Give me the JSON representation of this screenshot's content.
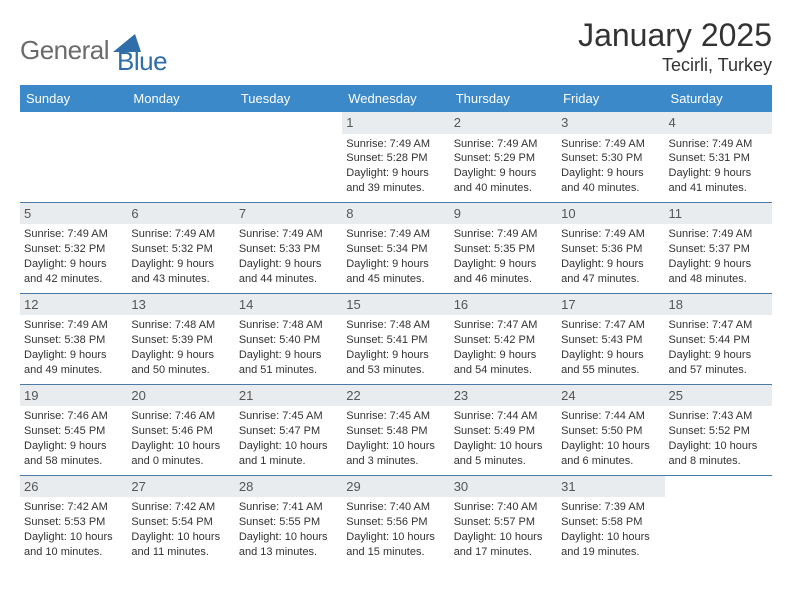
{
  "brand": {
    "part1": "General",
    "part2": "Blue"
  },
  "title": {
    "month": "January 2025",
    "location": "Tecirli, Turkey"
  },
  "style": {
    "header_bg": "#3b89c9",
    "header_fg": "#ffffff",
    "daynum_bg": "#e9ecef",
    "daynum_fg": "#555555",
    "cell_border": "#4a7ba8",
    "body_fg": "#333333",
    "logo_gray": "#6b6b6b",
    "logo_blue": "#2f6ea8",
    "triangle_fill": "#2f6ea8",
    "month_fontsize": 32,
    "location_fontsize": 18,
    "header_fontsize": 13,
    "cell_fontsize": 11
  },
  "weekdays": [
    "Sunday",
    "Monday",
    "Tuesday",
    "Wednesday",
    "Thursday",
    "Friday",
    "Saturday"
  ],
  "weeks": [
    [
      {
        "day": "",
        "lines": []
      },
      {
        "day": "",
        "lines": []
      },
      {
        "day": "",
        "lines": []
      },
      {
        "day": "1",
        "lines": [
          "Sunrise: 7:49 AM",
          "Sunset: 5:28 PM",
          "Daylight: 9 hours",
          "and 39 minutes."
        ]
      },
      {
        "day": "2",
        "lines": [
          "Sunrise: 7:49 AM",
          "Sunset: 5:29 PM",
          "Daylight: 9 hours",
          "and 40 minutes."
        ]
      },
      {
        "day": "3",
        "lines": [
          "Sunrise: 7:49 AM",
          "Sunset: 5:30 PM",
          "Daylight: 9 hours",
          "and 40 minutes."
        ]
      },
      {
        "day": "4",
        "lines": [
          "Sunrise: 7:49 AM",
          "Sunset: 5:31 PM",
          "Daylight: 9 hours",
          "and 41 minutes."
        ]
      }
    ],
    [
      {
        "day": "5",
        "lines": [
          "Sunrise: 7:49 AM",
          "Sunset: 5:32 PM",
          "Daylight: 9 hours",
          "and 42 minutes."
        ]
      },
      {
        "day": "6",
        "lines": [
          "Sunrise: 7:49 AM",
          "Sunset: 5:32 PM",
          "Daylight: 9 hours",
          "and 43 minutes."
        ]
      },
      {
        "day": "7",
        "lines": [
          "Sunrise: 7:49 AM",
          "Sunset: 5:33 PM",
          "Daylight: 9 hours",
          "and 44 minutes."
        ]
      },
      {
        "day": "8",
        "lines": [
          "Sunrise: 7:49 AM",
          "Sunset: 5:34 PM",
          "Daylight: 9 hours",
          "and 45 minutes."
        ]
      },
      {
        "day": "9",
        "lines": [
          "Sunrise: 7:49 AM",
          "Sunset: 5:35 PM",
          "Daylight: 9 hours",
          "and 46 minutes."
        ]
      },
      {
        "day": "10",
        "lines": [
          "Sunrise: 7:49 AM",
          "Sunset: 5:36 PM",
          "Daylight: 9 hours",
          "and 47 minutes."
        ]
      },
      {
        "day": "11",
        "lines": [
          "Sunrise: 7:49 AM",
          "Sunset: 5:37 PM",
          "Daylight: 9 hours",
          "and 48 minutes."
        ]
      }
    ],
    [
      {
        "day": "12",
        "lines": [
          "Sunrise: 7:49 AM",
          "Sunset: 5:38 PM",
          "Daylight: 9 hours",
          "and 49 minutes."
        ]
      },
      {
        "day": "13",
        "lines": [
          "Sunrise: 7:48 AM",
          "Sunset: 5:39 PM",
          "Daylight: 9 hours",
          "and 50 minutes."
        ]
      },
      {
        "day": "14",
        "lines": [
          "Sunrise: 7:48 AM",
          "Sunset: 5:40 PM",
          "Daylight: 9 hours",
          "and 51 minutes."
        ]
      },
      {
        "day": "15",
        "lines": [
          "Sunrise: 7:48 AM",
          "Sunset: 5:41 PM",
          "Daylight: 9 hours",
          "and 53 minutes."
        ]
      },
      {
        "day": "16",
        "lines": [
          "Sunrise: 7:47 AM",
          "Sunset: 5:42 PM",
          "Daylight: 9 hours",
          "and 54 minutes."
        ]
      },
      {
        "day": "17",
        "lines": [
          "Sunrise: 7:47 AM",
          "Sunset: 5:43 PM",
          "Daylight: 9 hours",
          "and 55 minutes."
        ]
      },
      {
        "day": "18",
        "lines": [
          "Sunrise: 7:47 AM",
          "Sunset: 5:44 PM",
          "Daylight: 9 hours",
          "and 57 minutes."
        ]
      }
    ],
    [
      {
        "day": "19",
        "lines": [
          "Sunrise: 7:46 AM",
          "Sunset: 5:45 PM",
          "Daylight: 9 hours",
          "and 58 minutes."
        ]
      },
      {
        "day": "20",
        "lines": [
          "Sunrise: 7:46 AM",
          "Sunset: 5:46 PM",
          "Daylight: 10 hours",
          "and 0 minutes."
        ]
      },
      {
        "day": "21",
        "lines": [
          "Sunrise: 7:45 AM",
          "Sunset: 5:47 PM",
          "Daylight: 10 hours",
          "and 1 minute."
        ]
      },
      {
        "day": "22",
        "lines": [
          "Sunrise: 7:45 AM",
          "Sunset: 5:48 PM",
          "Daylight: 10 hours",
          "and 3 minutes."
        ]
      },
      {
        "day": "23",
        "lines": [
          "Sunrise: 7:44 AM",
          "Sunset: 5:49 PM",
          "Daylight: 10 hours",
          "and 5 minutes."
        ]
      },
      {
        "day": "24",
        "lines": [
          "Sunrise: 7:44 AM",
          "Sunset: 5:50 PM",
          "Daylight: 10 hours",
          "and 6 minutes."
        ]
      },
      {
        "day": "25",
        "lines": [
          "Sunrise: 7:43 AM",
          "Sunset: 5:52 PM",
          "Daylight: 10 hours",
          "and 8 minutes."
        ]
      }
    ],
    [
      {
        "day": "26",
        "lines": [
          "Sunrise: 7:42 AM",
          "Sunset: 5:53 PM",
          "Daylight: 10 hours",
          "and 10 minutes."
        ]
      },
      {
        "day": "27",
        "lines": [
          "Sunrise: 7:42 AM",
          "Sunset: 5:54 PM",
          "Daylight: 10 hours",
          "and 11 minutes."
        ]
      },
      {
        "day": "28",
        "lines": [
          "Sunrise: 7:41 AM",
          "Sunset: 5:55 PM",
          "Daylight: 10 hours",
          "and 13 minutes."
        ]
      },
      {
        "day": "29",
        "lines": [
          "Sunrise: 7:40 AM",
          "Sunset: 5:56 PM",
          "Daylight: 10 hours",
          "and 15 minutes."
        ]
      },
      {
        "day": "30",
        "lines": [
          "Sunrise: 7:40 AM",
          "Sunset: 5:57 PM",
          "Daylight: 10 hours",
          "and 17 minutes."
        ]
      },
      {
        "day": "31",
        "lines": [
          "Sunrise: 7:39 AM",
          "Sunset: 5:58 PM",
          "Daylight: 10 hours",
          "and 19 minutes."
        ]
      },
      {
        "day": "",
        "lines": []
      }
    ]
  ]
}
